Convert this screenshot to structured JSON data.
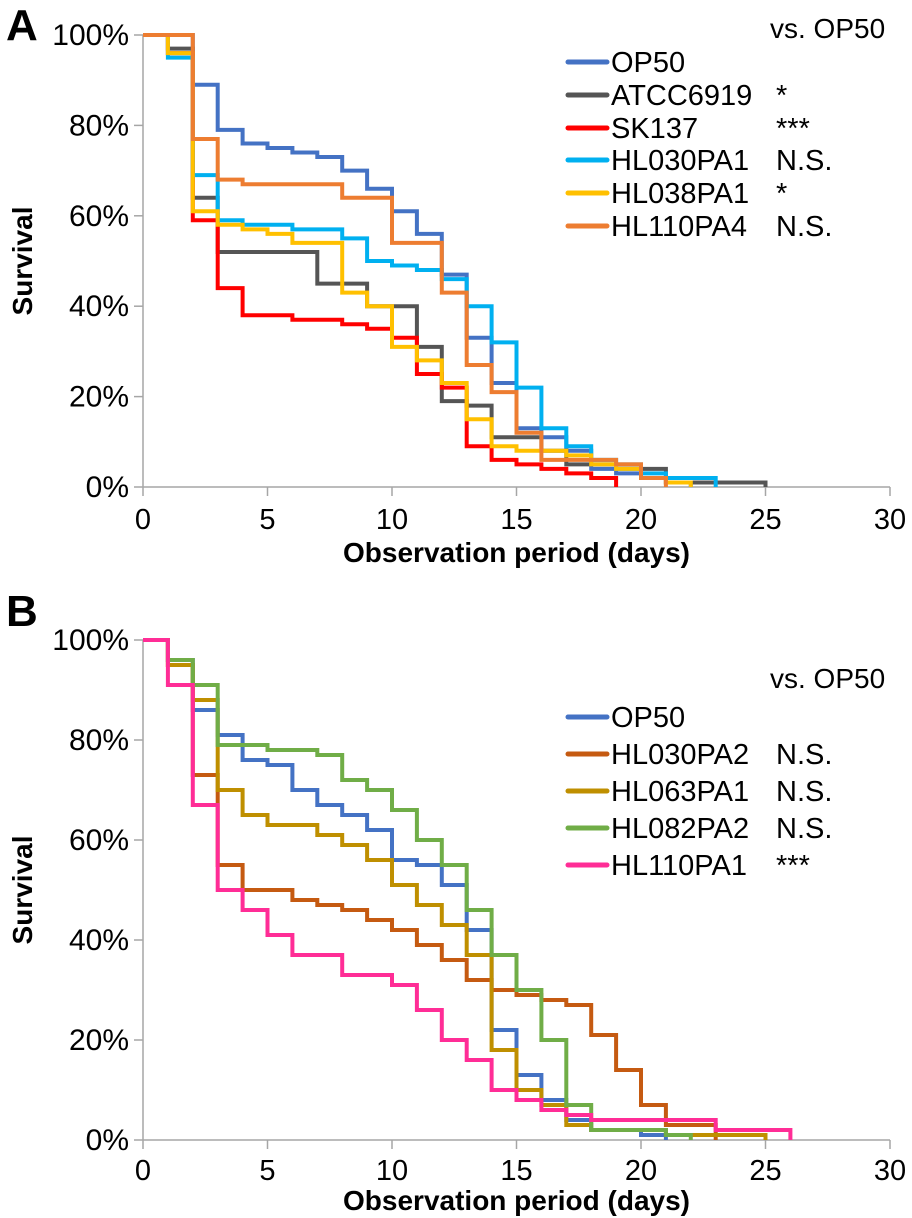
{
  "style": {
    "axis_color": "#A6A6A6",
    "text_color": "#000000",
    "background": "#FFFFFF",
    "curve_stroke_width": 4
  },
  "chart_data": [
    {
      "type": "line",
      "subtype": "kaplan-meier-step-survival",
      "panel_label": "A",
      "xlabel": "Observation period (days)",
      "ylabel": "Survival",
      "legend_note": "vs. OP50",
      "legend_position": "top-right-inside",
      "grid": "off",
      "xlim": [
        0,
        30
      ],
      "ylim": [
        0,
        100
      ],
      "x_unit": "days",
      "x_ticks": [
        0,
        5,
        10,
        15,
        20,
        25,
        30
      ],
      "y_ticks": [
        {
          "value": 100,
          "label": "100%"
        },
        {
          "value": 80,
          "label": "80%"
        },
        {
          "value": 60,
          "label": "60%"
        },
        {
          "value": 40,
          "label": "40%"
        },
        {
          "value": 20,
          "label": "20%"
        },
        {
          "value": 0,
          "label": "0%"
        }
      ],
      "values_key": "percent surviving; array index = observation day",
      "series": [
        {
          "name": "OP50",
          "color": "#4472C4",
          "vs_op50": "",
          "values": [
            100,
            100,
            89,
            79,
            76,
            75,
            74,
            73,
            70,
            66,
            61,
            56,
            47,
            33,
            23,
            13,
            11,
            8,
            4,
            3,
            2,
            1,
            0
          ]
        },
        {
          "name": "ATCC6919",
          "color": "#555555",
          "vs_op50": "*",
          "values": [
            100,
            97,
            64,
            52,
            52,
            52,
            52,
            45,
            45,
            40,
            40,
            31,
            19,
            18,
            11,
            11,
            8,
            5,
            5,
            5,
            4,
            1,
            1,
            1,
            1,
            0
          ]
        },
        {
          "name": "SK137",
          "color": "#FF0000",
          "vs_op50": "***",
          "values": [
            100,
            96,
            59,
            44,
            38,
            38,
            37,
            37,
            36,
            35,
            33,
            25,
            22,
            9,
            6,
            5,
            4,
            3,
            2,
            0
          ]
        },
        {
          "name": "HL030PA1",
          "color": "#00B0F0",
          "vs_op50": "N.S.",
          "values": [
            100,
            95,
            69,
            59,
            58,
            58,
            57,
            57,
            55,
            50,
            49,
            48,
            46,
            40,
            32,
            22,
            13,
            9,
            6,
            4,
            3,
            2,
            2,
            0
          ]
        },
        {
          "name": "HL038PA1",
          "color": "#FFC000",
          "vs_op50": "*",
          "values": [
            100,
            96,
            61,
            58,
            57,
            56,
            54,
            54,
            43,
            40,
            31,
            28,
            23,
            15,
            9,
            8,
            8,
            7,
            5,
            4,
            2,
            1,
            0
          ]
        },
        {
          "name": "HL110PA4",
          "color": "#ED7D31",
          "vs_op50": "N.S.",
          "values": [
            100,
            100,
            77,
            68,
            67,
            67,
            67,
            67,
            64,
            64,
            54,
            54,
            43,
            27,
            21,
            12,
            6,
            6,
            6,
            5,
            2,
            0
          ]
        }
      ]
    },
    {
      "type": "line",
      "subtype": "kaplan-meier-step-survival",
      "panel_label": "B",
      "xlabel": "Observation period (days)",
      "ylabel": "Survival",
      "legend_note": "vs. OP50",
      "legend_position": "top-right-inside",
      "grid": "off",
      "xlim": [
        0,
        30
      ],
      "ylim": [
        0,
        100
      ],
      "x_unit": "days",
      "x_ticks": [
        0,
        5,
        10,
        15,
        20,
        25,
        30
      ],
      "y_ticks": [
        {
          "value": 100,
          "label": "100%"
        },
        {
          "value": 80,
          "label": "80%"
        },
        {
          "value": 60,
          "label": "60%"
        },
        {
          "value": 40,
          "label": "40%"
        },
        {
          "value": 20,
          "label": "20%"
        },
        {
          "value": 0,
          "label": "0%"
        }
      ],
      "values_key": "percent surviving; array index = observation day",
      "series": [
        {
          "name": "OP50",
          "color": "#4472C4",
          "vs_op50": "",
          "values": [
            100,
            96,
            86,
            81,
            76,
            75,
            70,
            67,
            65,
            62,
            56,
            55,
            51,
            42,
            22,
            13,
            8,
            4,
            2,
            2,
            1,
            0
          ]
        },
        {
          "name": "HL030PA2",
          "color": "#C55A11",
          "vs_op50": "N.S.",
          "values": [
            100,
            95,
            73,
            55,
            50,
            50,
            48,
            47,
            46,
            44,
            42,
            39,
            36,
            32,
            30,
            29,
            28,
            27,
            21,
            14,
            7,
            3,
            3,
            0
          ]
        },
        {
          "name": "HL063PA1",
          "color": "#BF8F00",
          "vs_op50": "N.S.",
          "values": [
            100,
            95,
            88,
            70,
            65,
            63,
            63,
            61,
            59,
            56,
            51,
            47,
            43,
            37,
            18,
            10,
            7,
            3,
            2,
            2,
            2,
            1,
            1,
            1,
            1,
            0
          ]
        },
        {
          "name": "HL082PA2",
          "color": "#70AD47",
          "vs_op50": "N.S.",
          "values": [
            100,
            96,
            91,
            79,
            79,
            78,
            78,
            77,
            72,
            70,
            66,
            60,
            55,
            46,
            37,
            30,
            20,
            7,
            2,
            2,
            2,
            1,
            0
          ]
        },
        {
          "name": "HL110PA1",
          "color": "#FF2D96",
          "vs_op50": "***",
          "values": [
            100,
            91,
            67,
            50,
            46,
            41,
            37,
            37,
            33,
            33,
            31,
            26,
            20,
            16,
            10,
            8,
            6,
            5,
            4,
            4,
            4,
            4,
            4,
            2,
            2,
            2,
            0
          ]
        }
      ]
    }
  ]
}
